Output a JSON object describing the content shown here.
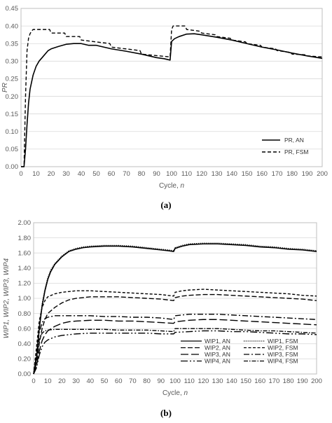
{
  "chart_data": [
    {
      "type": "line",
      "panel_label": "(a)",
      "xlabel": "Cycle, ",
      "xlabel_var": "n",
      "ylabel": "PR",
      "xlim": [
        0,
        200
      ],
      "ylim": [
        0,
        0.45
      ],
      "xticks": [
        0,
        10,
        20,
        30,
        40,
        50,
        60,
        70,
        80,
        90,
        100,
        110,
        120,
        130,
        140,
        150,
        160,
        170,
        180,
        190,
        200
      ],
      "yticks": [
        "0.00",
        "0.05",
        "0.10",
        "0.15",
        "0.20",
        "0.25",
        "0.30",
        "0.35",
        "0.40",
        "0.45"
      ],
      "grid": true,
      "legend_position": "bottom-right",
      "series": [
        {
          "name": "PR, AN",
          "style": "solid",
          "x": [
            0,
            2,
            3,
            4,
            5,
            6,
            8,
            10,
            12,
            15,
            18,
            20,
            25,
            30,
            35,
            40,
            45,
            50,
            55,
            60,
            70,
            80,
            90,
            95,
            99,
            100,
            102,
            105,
            110,
            115,
            120,
            130,
            140,
            150,
            160,
            170,
            180,
            190,
            200
          ],
          "y": [
            0,
            0,
            0.05,
            0.12,
            0.18,
            0.22,
            0.26,
            0.285,
            0.3,
            0.315,
            0.33,
            0.335,
            0.342,
            0.348,
            0.35,
            0.35,
            0.345,
            0.345,
            0.34,
            0.335,
            0.328,
            0.32,
            0.31,
            0.307,
            0.303,
            0.356,
            0.364,
            0.37,
            0.377,
            0.378,
            0.375,
            0.368,
            0.36,
            0.35,
            0.34,
            0.332,
            0.323,
            0.315,
            0.308
          ]
        },
        {
          "name": "PR, FSM",
          "style": "dashed",
          "x": [
            0,
            2,
            3,
            4,
            5,
            6,
            7,
            8,
            10,
            15,
            19,
            20,
            25,
            29,
            30,
            39,
            40,
            59,
            60,
            79,
            80,
            99,
            100,
            101,
            109,
            110,
            119,
            120,
            129,
            130,
            139,
            140,
            149,
            150,
            159,
            160,
            169,
            170,
            179,
            180,
            189,
            190,
            200
          ],
          "y": [
            0,
            0,
            0.2,
            0.33,
            0.365,
            0.378,
            0.385,
            0.39,
            0.39,
            0.39,
            0.39,
            0.38,
            0.38,
            0.38,
            0.37,
            0.37,
            0.36,
            0.35,
            0.34,
            0.33,
            0.32,
            0.312,
            0.39,
            0.4,
            0.4,
            0.39,
            0.385,
            0.38,
            0.375,
            0.37,
            0.365,
            0.36,
            0.355,
            0.35,
            0.345,
            0.34,
            0.335,
            0.33,
            0.325,
            0.32,
            0.318,
            0.315,
            0.312
          ]
        }
      ]
    },
    {
      "type": "line",
      "panel_label": "(b)",
      "xlabel": "Cycle, ",
      "xlabel_var": "n",
      "ylabel": "WIP1, WIP2, WIP3, WIP4",
      "xlim": [
        0,
        200
      ],
      "ylim": [
        0,
        2.0
      ],
      "xticks": [
        0,
        10,
        20,
        30,
        40,
        50,
        60,
        70,
        80,
        90,
        100,
        110,
        120,
        130,
        140,
        150,
        160,
        170,
        180,
        190,
        200
      ],
      "yticks": [
        "0.00",
        "0.20",
        "0.40",
        "0.60",
        "0.80",
        "1.00",
        "1.20",
        "1.40",
        "1.60",
        "1.80",
        "2.00"
      ],
      "grid": true,
      "legend_position": "bottom",
      "series": [
        {
          "name": "WIP1, AN",
          "style": "solid",
          "x": [
            0,
            2,
            4,
            6,
            8,
            10,
            12,
            15,
            20,
            25,
            30,
            35,
            40,
            50,
            60,
            70,
            80,
            90,
            95,
            99,
            100,
            105,
            110,
            120,
            130,
            140,
            150,
            160,
            170,
            180,
            190,
            200
          ],
          "y": [
            0,
            0.2,
            0.6,
            0.9,
            1.1,
            1.25,
            1.35,
            1.45,
            1.55,
            1.62,
            1.65,
            1.67,
            1.68,
            1.69,
            1.69,
            1.68,
            1.66,
            1.64,
            1.63,
            1.62,
            1.66,
            1.69,
            1.71,
            1.72,
            1.72,
            1.71,
            1.7,
            1.68,
            1.67,
            1.65,
            1.64,
            1.62
          ]
        },
        {
          "name": "WIP1, FSM",
          "style": "dotted",
          "x": [
            0,
            2,
            4,
            6,
            8,
            10,
            12,
            15,
            20,
            25,
            30,
            35,
            40,
            50,
            60,
            70,
            80,
            90,
            95,
            99,
            100,
            105,
            110,
            120,
            130,
            140,
            150,
            160,
            170,
            180,
            190,
            200
          ],
          "y": [
            0,
            0.22,
            0.62,
            0.92,
            1.12,
            1.27,
            1.37,
            1.46,
            1.56,
            1.63,
            1.66,
            1.68,
            1.69,
            1.7,
            1.7,
            1.69,
            1.67,
            1.65,
            1.64,
            1.63,
            1.67,
            1.7,
            1.72,
            1.73,
            1.73,
            1.72,
            1.71,
            1.69,
            1.68,
            1.66,
            1.65,
            1.63
          ]
        },
        {
          "name": "WIP2, AN",
          "style": "dash",
          "x": [
            0,
            2,
            4,
            6,
            8,
            10,
            15,
            20,
            25,
            30,
            40,
            50,
            60,
            70,
            80,
            90,
            99,
            100,
            105,
            110,
            120,
            130,
            140,
            150,
            160,
            170,
            180,
            190,
            200
          ],
          "y": [
            0,
            0.15,
            0.4,
            0.6,
            0.72,
            0.8,
            0.88,
            0.94,
            0.98,
            1.0,
            1.02,
            1.02,
            1.02,
            1.01,
            1.0,
            0.99,
            0.97,
            1.01,
            1.03,
            1.04,
            1.05,
            1.05,
            1.04,
            1.03,
            1.02,
            1.01,
            1.0,
            0.99,
            0.97
          ]
        },
        {
          "name": "WIP2, FSM",
          "style": "shortdash",
          "x": [
            0,
            2,
            4,
            6,
            8,
            10,
            15,
            20,
            25,
            30,
            40,
            50,
            60,
            70,
            80,
            90,
            99,
            100,
            105,
            110,
            120,
            130,
            140,
            150,
            160,
            170,
            180,
            190,
            200
          ],
          "y": [
            0,
            0.35,
            0.7,
            0.88,
            0.97,
            1.02,
            1.06,
            1.08,
            1.09,
            1.1,
            1.1,
            1.09,
            1.08,
            1.07,
            1.06,
            1.05,
            1.03,
            1.08,
            1.1,
            1.11,
            1.12,
            1.11,
            1.1,
            1.09,
            1.08,
            1.07,
            1.06,
            1.04,
            1.03
          ]
        },
        {
          "name": "WIP3, AN",
          "style": "longdash",
          "x": [
            0,
            2,
            4,
            6,
            8,
            10,
            15,
            20,
            25,
            30,
            40,
            50,
            60,
            70,
            80,
            90,
            99,
            100,
            110,
            120,
            130,
            140,
            150,
            160,
            170,
            180,
            190,
            200
          ],
          "y": [
            0,
            0.1,
            0.3,
            0.44,
            0.52,
            0.57,
            0.63,
            0.67,
            0.69,
            0.7,
            0.71,
            0.71,
            0.7,
            0.7,
            0.69,
            0.68,
            0.67,
            0.69,
            0.71,
            0.72,
            0.72,
            0.71,
            0.7,
            0.69,
            0.68,
            0.67,
            0.66,
            0.65
          ]
        },
        {
          "name": "WIP3, FSM",
          "style": "dashdot",
          "x": [
            0,
            2,
            4,
            6,
            8,
            10,
            15,
            20,
            25,
            30,
            40,
            50,
            60,
            70,
            80,
            90,
            99,
            100,
            110,
            120,
            130,
            140,
            150,
            160,
            170,
            180,
            190,
            200
          ],
          "y": [
            0,
            0.25,
            0.55,
            0.68,
            0.73,
            0.75,
            0.77,
            0.77,
            0.77,
            0.77,
            0.77,
            0.76,
            0.76,
            0.75,
            0.75,
            0.74,
            0.72,
            0.77,
            0.79,
            0.79,
            0.79,
            0.78,
            0.77,
            0.76,
            0.75,
            0.74,
            0.73,
            0.72
          ]
        },
        {
          "name": "WIP4, AN",
          "style": "dashdotdot",
          "x": [
            0,
            2,
            4,
            6,
            8,
            10,
            15,
            20,
            25,
            30,
            40,
            50,
            60,
            70,
            80,
            90,
            99,
            100,
            110,
            120,
            130,
            140,
            150,
            160,
            170,
            180,
            190,
            200
          ],
          "y": [
            0,
            0.08,
            0.25,
            0.36,
            0.42,
            0.45,
            0.49,
            0.51,
            0.52,
            0.53,
            0.54,
            0.54,
            0.54,
            0.54,
            0.54,
            0.53,
            0.53,
            0.55,
            0.56,
            0.57,
            0.57,
            0.56,
            0.56,
            0.55,
            0.54,
            0.53,
            0.53,
            0.52
          ]
        },
        {
          "name": "WIP4, FSM",
          "style": "dashdot2",
          "x": [
            0,
            2,
            4,
            6,
            8,
            10,
            15,
            20,
            25,
            30,
            40,
            50,
            60,
            70,
            80,
            90,
            99,
            100,
            110,
            120,
            130,
            140,
            150,
            160,
            170,
            180,
            190,
            200
          ],
          "y": [
            0,
            0.2,
            0.45,
            0.54,
            0.57,
            0.58,
            0.59,
            0.59,
            0.59,
            0.59,
            0.59,
            0.59,
            0.58,
            0.58,
            0.58,
            0.57,
            0.56,
            0.6,
            0.6,
            0.6,
            0.6,
            0.59,
            0.58,
            0.57,
            0.57,
            0.56,
            0.55,
            0.54
          ]
        }
      ]
    }
  ]
}
